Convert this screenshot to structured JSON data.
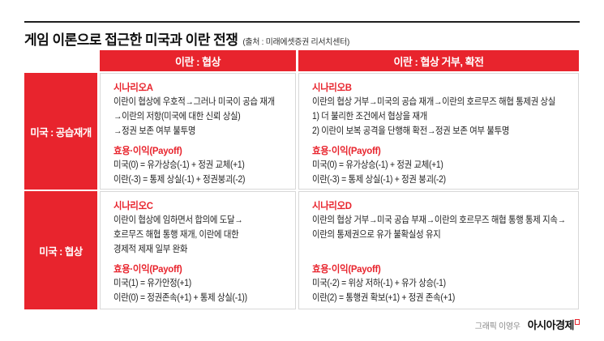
{
  "page": {
    "title": "게임 이론으로 접근한 미국과 이란 전쟁",
    "source": "(출처 : 미래에셋증권 리서치센터)",
    "credit_prefix": "그래픽 이영우",
    "credit_brand": "아시아경제"
  },
  "colors": {
    "accent_red": "#e8242d",
    "border_gray": "#d8d8d8",
    "text_dark": "#1a1a1a"
  },
  "matrix": {
    "col_headers": [
      "이란 : 협상",
      "이란 : 협상 거부, 확전"
    ],
    "row_headers": [
      "미국 : 공습재개",
      "미국 : 협상"
    ],
    "cells": [
      {
        "id": "A",
        "scenario_title": "시나리오A",
        "description_lines": [
          "이란이 협상에 우호적→그러나 미국이 공습 재개",
          "→이란의 저항(미국에 대한 신뢰 상실)",
          "→정권 보존 여부 불투명"
        ],
        "payoff_title": "효용·이익(Payoff)",
        "payoff_lines": [
          "미국(0) = 유가상승(-1) + 정권 교체(+1)",
          "이란(-3) = 통제 상실(-1) + 정권붕괴(-2)"
        ]
      },
      {
        "id": "B",
        "scenario_title": "시나리오B",
        "description_lines": [
          "이란의 협상 거부→미국의 공습 재개→이란의 호르무즈 해협 통제권 상실",
          "1) 더 불리한 조건에서 협상을 재개",
          "2) 이란이 보복 공격을 단행해 확전→정권 보존 여부 불투명"
        ],
        "payoff_title": "효용·이익(Payoff)",
        "payoff_lines": [
          "미국(0) = 유가상승(-1) + 정권 교체(+1)",
          "이란(-3) = 통제 상실(-1) + 정권 붕괴(-2)"
        ]
      },
      {
        "id": "C",
        "scenario_title": "시나리오C",
        "description_lines": [
          "이란이 협상에 임하면서 합의에 도달→",
          "호르무즈 해협 통행 재개, 이란에 대한",
          "경제적 제재 일부 완화"
        ],
        "payoff_title": "효용·이익(Payoff)",
        "payoff_lines": [
          "미국(1) = 유가안정(+1)",
          "이란(0) = 정권존속(+1) + 통제 상실(-1))"
        ]
      },
      {
        "id": "D",
        "scenario_title": "시나리오D",
        "description_lines": [
          "이란의 협상 거부→미국 공습 부재→이란의 호르무즈 해협 통행 통제 지속→",
          "이란의 통제권으로 유가 불확실성 유지"
        ],
        "payoff_title": "효용·이익(Payoff)",
        "payoff_lines": [
          "미국(-2) = 위상 저하(-1) + 유가 상승(-1)",
          "이란(2) = 통행권 확보(+1) + 정권 존속(+1)"
        ]
      }
    ]
  }
}
